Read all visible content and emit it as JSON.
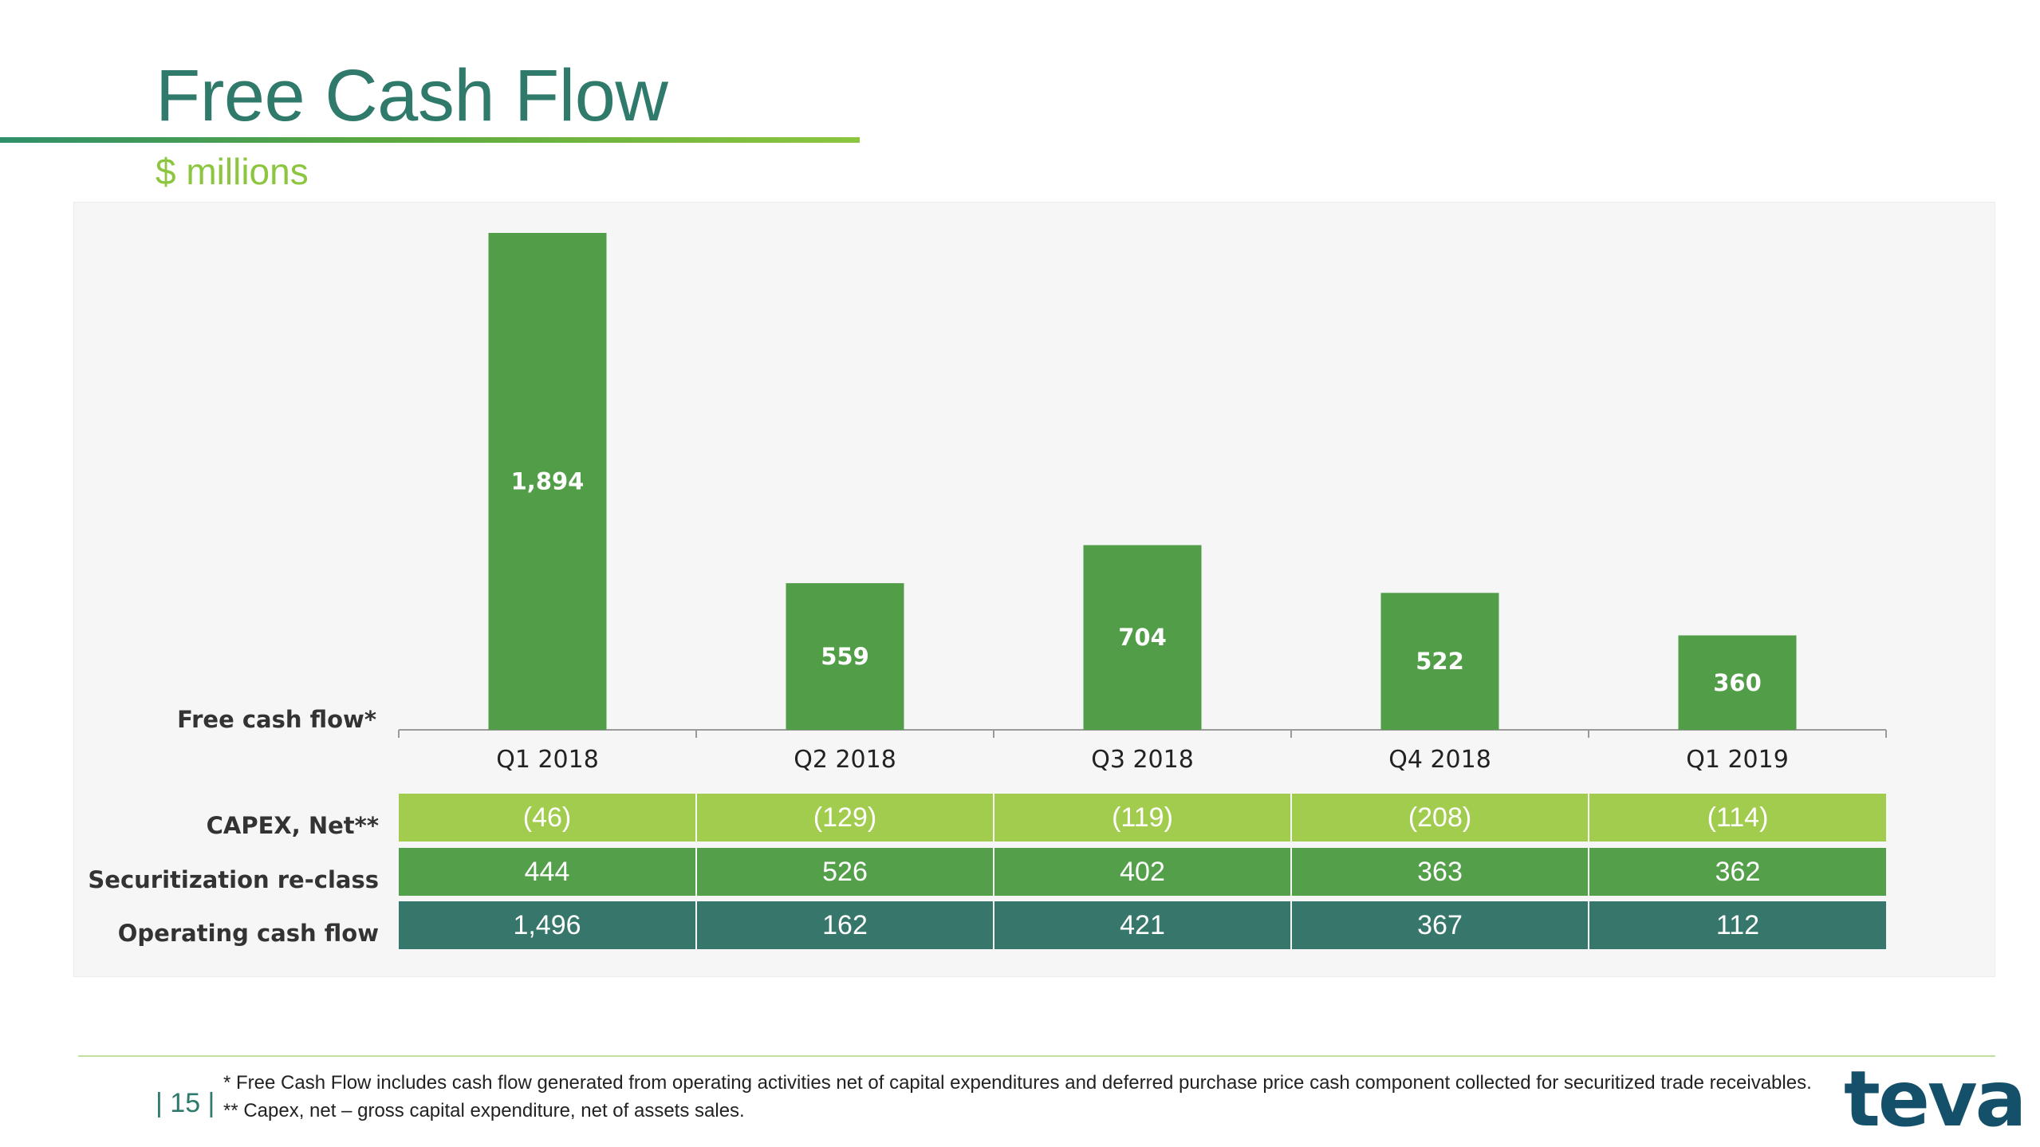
{
  "slide": {
    "title": "Free Cash Flow",
    "subtitle": "$ millions",
    "page_number": "| 15 |",
    "logo_text": "teva"
  },
  "colors": {
    "title": "#2f7a6a",
    "subtitle": "#8cc63f",
    "bar": "#529e48",
    "capex_row": "#a2cc4e",
    "securitization_row": "#54a04a",
    "operating_row": "#37766b",
    "logo": "#15506a"
  },
  "chart_data": {
    "type": "bar",
    "categories": [
      "Q1 2018",
      "Q2 2018",
      "Q3 2018",
      "Q4 2018",
      "Q1 2019"
    ],
    "series": [
      {
        "name": "Free cash flow*",
        "values": [
          1894,
          559,
          704,
          522,
          360
        ]
      }
    ],
    "data_labels": [
      "1,894",
      "559",
      "704",
      "522",
      "360"
    ],
    "ylim": [
      0,
      1894
    ],
    "grid": false,
    "legend": "none"
  },
  "table": {
    "rows": [
      {
        "label": "CAPEX, Net**",
        "cells": [
          "(46)",
          "(129)",
          "(119)",
          "(208)",
          "(114)"
        ]
      },
      {
        "label": "Securitization re-class",
        "cells": [
          "444",
          "526",
          "402",
          "363",
          "362"
        ]
      },
      {
        "label": "Operating cash flow",
        "cells": [
          "1,496",
          "162",
          "421",
          "367",
          "112"
        ]
      }
    ]
  },
  "footnotes": [
    "* Free Cash Flow includes cash flow generated from operating activities net of capital expenditures and deferred purchase price cash component collected for securitized trade receivables.",
    "** Capex, net – gross capital expenditure, net of assets sales."
  ]
}
